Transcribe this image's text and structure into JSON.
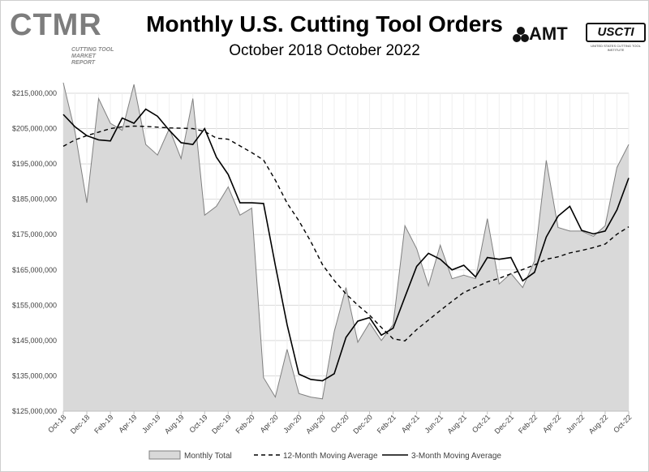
{
  "header": {
    "title": "Monthly U.S. Cutting Tool Orders",
    "subtitle": "October 2018 October 2022",
    "logo_left": "CTMR",
    "logo_left_tagline": "CUTTING TOOL MARKET REPORT",
    "logo_right_1": "AMT",
    "logo_right_2": "USCTI",
    "logo_right_2_tagline": "UNITED STATES CUTTING TOOL INSTITUTE"
  },
  "chart_data": {
    "type": "area",
    "title": "Monthly U.S. Cutting Tool Orders",
    "subtitle": "October 2018 October 2022",
    "xlabel": "",
    "ylabel": "",
    "ylim": [
      125000000,
      215000000
    ],
    "yticks": [
      215000000,
      205000000,
      195000000,
      185000000,
      175000000,
      165000000,
      155000000,
      145000000,
      135000000,
      125000000
    ],
    "ytick_labels": [
      "$215,000,000",
      "$205,000,000",
      "$195,000,000",
      "$185,000,000",
      "$175,000,000",
      "$165,000,000",
      "$155,000,000",
      "$145,000,000",
      "$135,000,000",
      "$125,000,000"
    ],
    "x": [
      "Oct-18",
      "Nov-18",
      "Dec-18",
      "Jan-19",
      "Feb-19",
      "Mar-19",
      "Apr-19",
      "May-19",
      "Jun-19",
      "Jul-19",
      "Aug-19",
      "Sep-19",
      "Oct-19",
      "Nov-19",
      "Dec-19",
      "Jan-20",
      "Feb-20",
      "Mar-20",
      "Apr-20",
      "May-20",
      "Jun-20",
      "Jul-20",
      "Aug-20",
      "Sep-20",
      "Oct-20",
      "Nov-20",
      "Dec-20",
      "Jan-21",
      "Feb-21",
      "Mar-21",
      "Apr-21",
      "May-21",
      "Jun-21",
      "Jul-21",
      "Aug-21",
      "Sep-21",
      "Oct-21",
      "Nov-21",
      "Dec-21",
      "Jan-22",
      "Feb-22",
      "Mar-22",
      "Apr-22",
      "May-22",
      "Jun-22",
      "Jul-22",
      "Aug-22",
      "Sep-22",
      "Oct-22"
    ],
    "tick_labels": [
      "Oct-18",
      "Dec-18",
      "Feb-19",
      "Apr-19",
      "Jun-19",
      "Aug-19",
      "Oct-19",
      "Dec-19",
      "Feb-20",
      "Apr-20",
      "Jun-20",
      "Aug-20",
      "Oct-20",
      "Dec-20",
      "Feb-21",
      "Apr-21",
      "Jun-21",
      "Aug-21",
      "Oct-21",
      "Dec-21",
      "Feb-22",
      "Apr-22",
      "Jun-22",
      "Aug-22",
      "Oct-22"
    ],
    "legend_position": "bottom",
    "grid": true,
    "series": [
      {
        "name": "Monthly Total",
        "style": "area",
        "color": "#808080",
        "fill": "#d9d9d9",
        "values": [
          218000000,
          204000000,
          184000000,
          213500000,
          206500000,
          204500000,
          217500000,
          200500000,
          197500000,
          205000000,
          196500000,
          213500000,
          180500000,
          183000000,
          188500000,
          180500000,
          182500000,
          134500000,
          129000000,
          142500000,
          130000000,
          129000000,
          128500000,
          147500000,
          160000000,
          144500000,
          150000000,
          145000000,
          149500000,
          177500000,
          171000000,
          160500000,
          172000000,
          162500000,
          163500000,
          162500000,
          179500000,
          161000000,
          164000000,
          160000000,
          167500000,
          196000000,
          177000000,
          176000000,
          176000000,
          174500000,
          177500000,
          194000000,
          200500000
        ]
      },
      {
        "name": "12-Month Moving Average",
        "style": "dashed",
        "color": "#000000",
        "values": [
          200000000,
          201800000,
          203000000,
          204000000,
          205000000,
          205500000,
          205700000,
          205600000,
          205400000,
          205200000,
          205100000,
          205000000,
          204200000,
          202300000,
          202000000,
          200100000,
          198200000,
          196100000,
          190400000,
          183900000,
          178900000,
          173100000,
          166500000,
          162000000,
          158200000,
          155000000,
          152200000,
          148700000,
          145500000,
          144900000,
          148100000,
          150800000,
          153500000,
          156100000,
          158600000,
          160100000,
          161600000,
          162600000,
          163900000,
          165100000,
          166400000,
          168000000,
          168700000,
          169800000,
          170500000,
          171300000,
          172300000,
          175100000,
          177200000
        ]
      },
      {
        "name": "3-Month Moving Average",
        "style": "solid",
        "color": "#000000",
        "values": [
          209000000,
          205500000,
          203000000,
          201800000,
          201500000,
          208000000,
          206500000,
          210500000,
          208500000,
          204500000,
          201000000,
          200500000,
          205000000,
          196900000,
          192000000,
          184000000,
          184000000,
          183800000,
          166300000,
          149500000,
          135500000,
          134000000,
          133600000,
          135600000,
          145900000,
          150500000,
          151500000,
          146500000,
          148500000,
          157300000,
          166000000,
          169700000,
          168000000,
          165000000,
          166300000,
          163000000,
          168500000,
          168000000,
          168500000,
          161900000,
          164300000,
          174300000,
          180200000,
          183000000,
          176200000,
          175200000,
          176000000,
          182000000,
          191000000
        ]
      }
    ]
  }
}
